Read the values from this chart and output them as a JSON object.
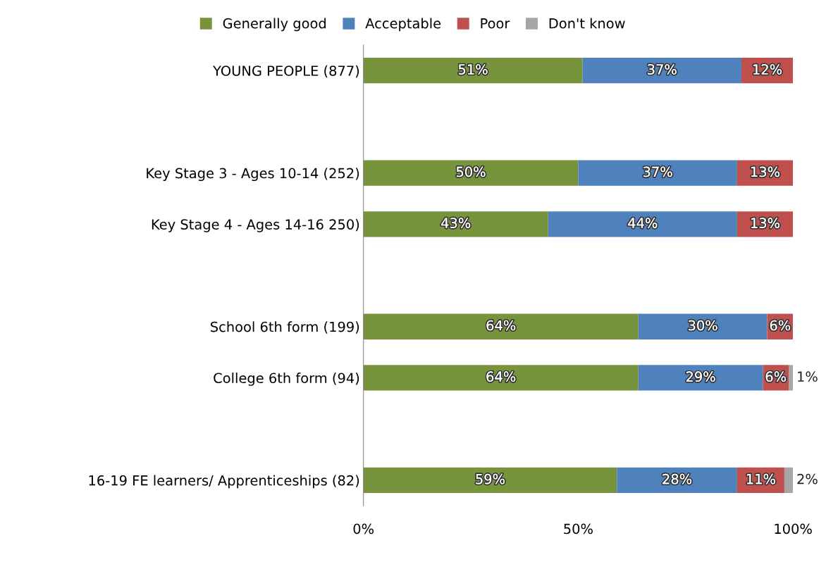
{
  "chart_data": {
    "type": "bar",
    "orientation": "horizontal",
    "stacked": true,
    "categories": [
      "YOUNG PEOPLE (877)",
      null,
      "Key Stage 3 - Ages 10-14 (252)",
      "Key Stage 4 - Ages 14-16 250)",
      null,
      "School 6th form (199)",
      "College 6th form (94)",
      null,
      "16-19 FE learners/ Apprenticeships (82)"
    ],
    "series": [
      {
        "name": "Generally good",
        "color": "#77933c",
        "values": [
          51,
          null,
          50,
          43,
          null,
          64,
          64,
          null,
          59
        ],
        "value_labels": [
          "51%",
          null,
          "50%",
          "43%",
          null,
          "64%",
          "64%",
          null,
          "59%"
        ]
      },
      {
        "name": "Acceptable",
        "color": "#4f81bd",
        "values": [
          37,
          null,
          37,
          44,
          null,
          30,
          29,
          null,
          28
        ],
        "value_labels": [
          "37%",
          null,
          "37%",
          "44%",
          null,
          "30%",
          "29%",
          null,
          "28%"
        ]
      },
      {
        "name": "Poor",
        "color": "#c0504d",
        "values": [
          12,
          null,
          13,
          13,
          null,
          6,
          6,
          null,
          11
        ],
        "value_labels": [
          "12%",
          null,
          "13%",
          "13%",
          null,
          "6%",
          "6%",
          null,
          "11%"
        ]
      },
      {
        "name": "Don't know",
        "color": "#a6a6a6",
        "values": [
          0,
          null,
          0,
          0,
          null,
          0,
          1,
          null,
          2
        ],
        "value_labels": [
          null,
          null,
          null,
          null,
          null,
          null,
          "1%",
          null,
          "2%"
        ]
      }
    ],
    "xlim": [
      0,
      100
    ],
    "xticks": [
      {
        "value": 0,
        "label": "0%"
      },
      {
        "value": 50,
        "label": "50%"
      },
      {
        "value": 100,
        "label": "100%"
      }
    ],
    "legend": "top",
    "grid": false
  }
}
